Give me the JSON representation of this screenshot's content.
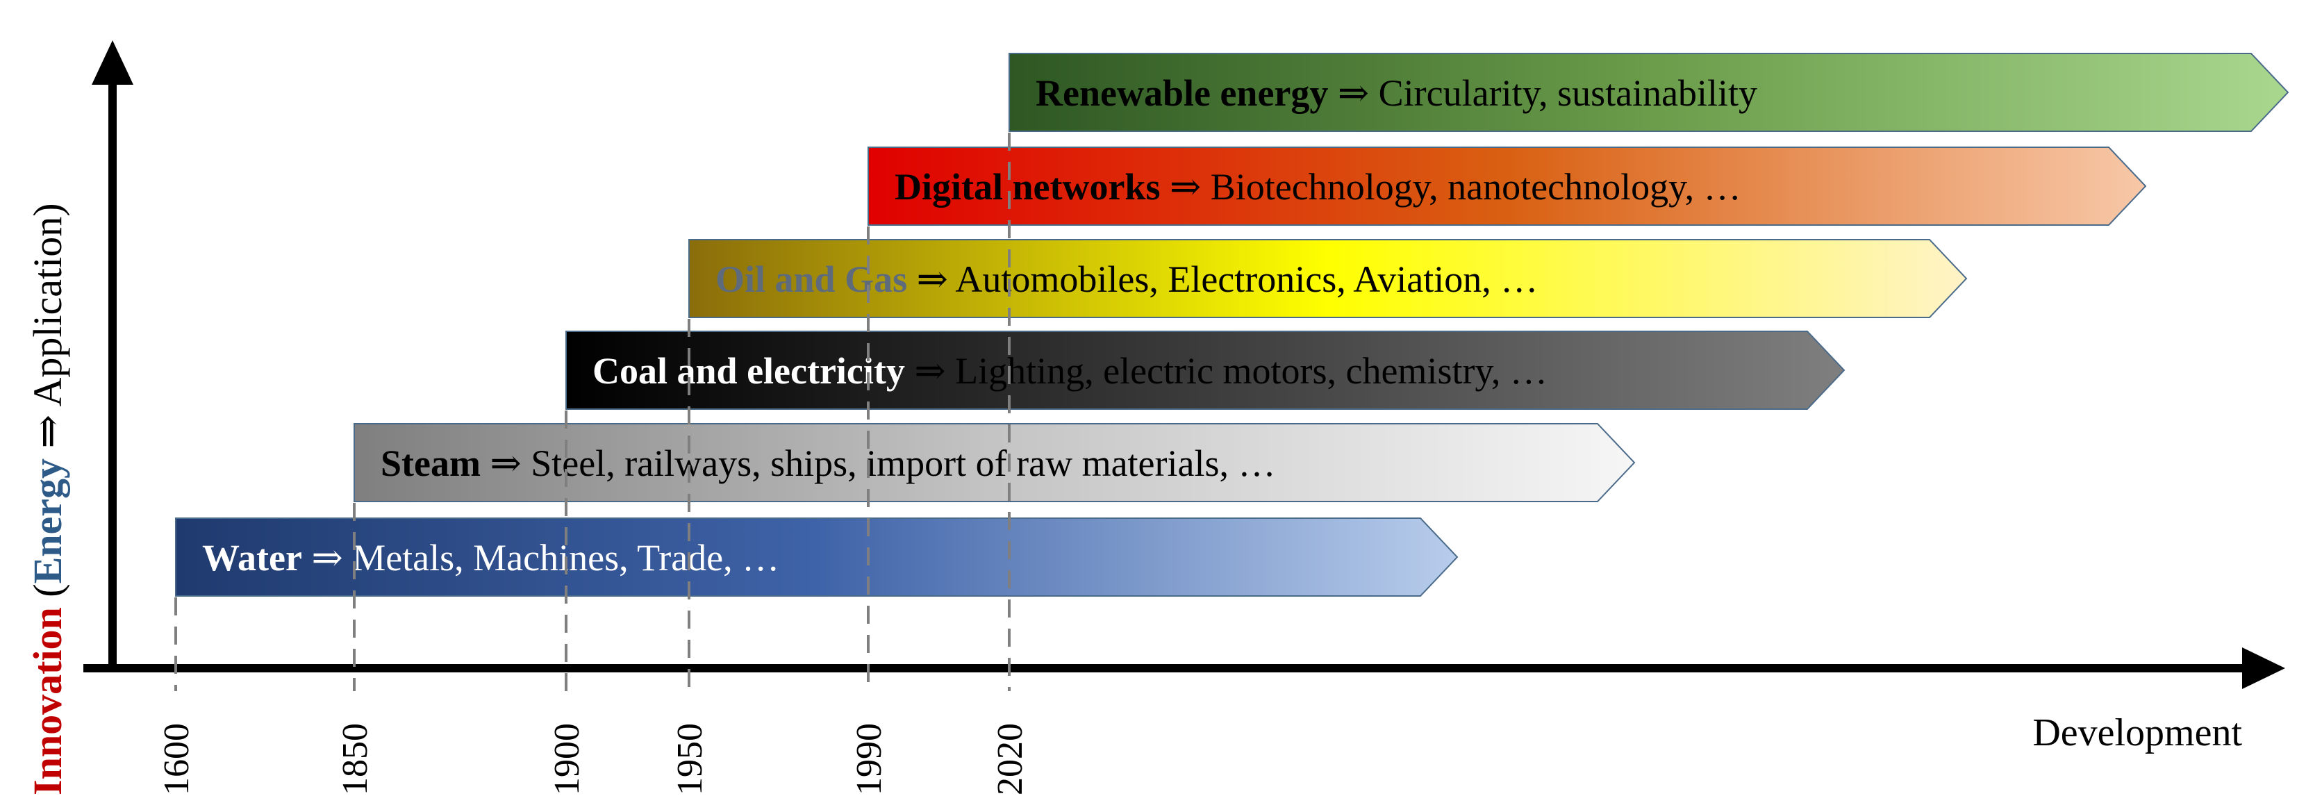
{
  "axes": {
    "y_label": {
      "innovation": "Innovation",
      "open_paren": " (",
      "energy": "Energy",
      "arrow_text": " ⇒ Application)"
    },
    "x_label": "Development",
    "x_ticks": [
      "1600",
      "1850",
      "1900",
      "1950",
      "1990",
      "2020"
    ]
  },
  "colors": {
    "innovation_red": "#c00000",
    "energy_blue": "#2e5a88",
    "axis": "#000000",
    "arrow_stroke": "#4a6a8a"
  },
  "eras": [
    {
      "start": "1600",
      "bold": "Water",
      "rest": " ⇒ Metals, Machines, Trade, …",
      "bold_color": "#ffffff",
      "rest_color": "#ffffff",
      "gradient": [
        "#1f3a6e",
        "#3f63a8",
        "#b8cdec"
      ]
    },
    {
      "start": "1850",
      "bold": "Steam",
      "rest": " ⇒ Steel, railways, ships, import of raw materials, …",
      "bold_color": "#000000",
      "rest_color": "#000000",
      "gradient": [
        "#7f7f7f",
        "#c4c4c4",
        "#f6f6f6"
      ]
    },
    {
      "start": "1900",
      "bold": "Coal and electricity",
      "rest": " ⇒ Lighting, electric motors, chemistry, …",
      "bold_color": "#ffffff",
      "rest_color": "#000000",
      "gradient": [
        "#000000",
        "#3c3c3c",
        "#7f7f7f"
      ]
    },
    {
      "start": "1950",
      "bold": "Oil and Gas",
      "rest": " ⇒ Automobiles, Electronics, Aviation, …",
      "bold_color": "#5d6b7c",
      "rest_color": "#000000",
      "gradient": [
        "#8a6d0a",
        "#ffff00",
        "#fff3c8"
      ]
    },
    {
      "start": "1990",
      "bold": "Digital networks",
      "rest": " ⇒ Biotechnology, nanotechnology, …",
      "bold_color": "#000000",
      "rest_color": "#000000",
      "gradient": [
        "#e00000",
        "#d96012",
        "#f7c8a8"
      ]
    },
    {
      "start": "2020",
      "bold": "Renewable energy",
      "rest": " ⇒ Circularity, sustainability",
      "bold_color": "#000000",
      "rest_color": "#000000",
      "gradient": [
        "#2e5723",
        "#6a9c4a",
        "#a9d78e"
      ]
    }
  ]
}
